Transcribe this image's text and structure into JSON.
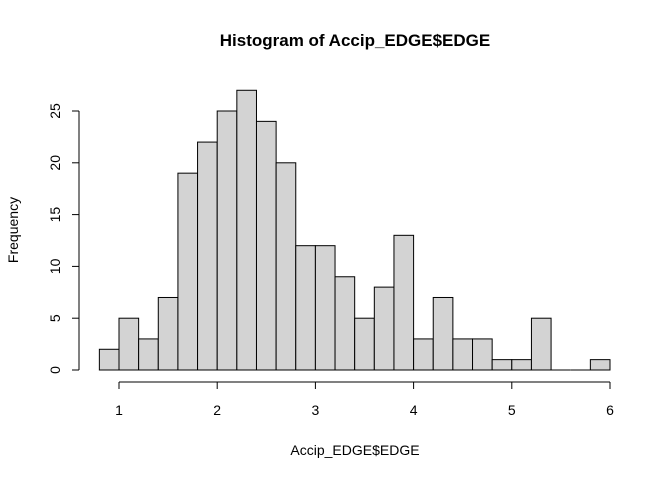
{
  "chart_data": {
    "type": "bar",
    "subtype": "histogram",
    "title": "Histogram of Accip_EDGE$EDGE",
    "xlabel": "Accip_EDGE$EDGE",
    "ylabel": "Frequency",
    "bin_width": 0.2,
    "bins": [
      {
        "from": 0.8,
        "to": 1.0,
        "count": 2
      },
      {
        "from": 1.0,
        "to": 1.2,
        "count": 5
      },
      {
        "from": 1.2,
        "to": 1.4,
        "count": 3
      },
      {
        "from": 1.4,
        "to": 1.6,
        "count": 7
      },
      {
        "from": 1.6,
        "to": 1.8,
        "count": 19
      },
      {
        "from": 1.8,
        "to": 2.0,
        "count": 22
      },
      {
        "from": 2.0,
        "to": 2.2,
        "count": 25
      },
      {
        "from": 2.2,
        "to": 2.4,
        "count": 27
      },
      {
        "from": 2.4,
        "to": 2.6,
        "count": 24
      },
      {
        "from": 2.6,
        "to": 2.8,
        "count": 20
      },
      {
        "from": 2.8,
        "to": 3.0,
        "count": 12
      },
      {
        "from": 3.0,
        "to": 3.2,
        "count": 12
      },
      {
        "from": 3.2,
        "to": 3.4,
        "count": 9
      },
      {
        "from": 3.4,
        "to": 3.6,
        "count": 5
      },
      {
        "from": 3.6,
        "to": 3.8,
        "count": 8
      },
      {
        "from": 3.8,
        "to": 4.0,
        "count": 13
      },
      {
        "from": 4.0,
        "to": 4.2,
        "count": 3
      },
      {
        "from": 4.2,
        "to": 4.4,
        "count": 7
      },
      {
        "from": 4.4,
        "to": 4.6,
        "count": 3
      },
      {
        "from": 4.6,
        "to": 4.8,
        "count": 3
      },
      {
        "from": 4.8,
        "to": 5.0,
        "count": 1
      },
      {
        "from": 5.0,
        "to": 5.2,
        "count": 1
      },
      {
        "from": 5.2,
        "to": 5.4,
        "count": 5
      },
      {
        "from": 5.4,
        "to": 5.6,
        "count": 0
      },
      {
        "from": 5.6,
        "to": 5.8,
        "count": 0
      },
      {
        "from": 5.8,
        "to": 6.0,
        "count": 1
      }
    ],
    "xlim": [
      0.8,
      6.0
    ],
    "ylim": [
      0,
      27
    ],
    "x_ticks": [
      1,
      2,
      3,
      4,
      5,
      6
    ],
    "y_ticks": [
      0,
      5,
      10,
      15,
      20,
      25
    ],
    "x_tick_labels": [
      "1",
      "2",
      "3",
      "4",
      "5",
      "6"
    ],
    "y_tick_labels": [
      "0",
      "5",
      "10",
      "15",
      "20",
      "25"
    ],
    "grid": false,
    "legend": "none",
    "colors": {
      "bar_fill": "#d3d3d3",
      "bar_stroke": "#000000"
    }
  }
}
